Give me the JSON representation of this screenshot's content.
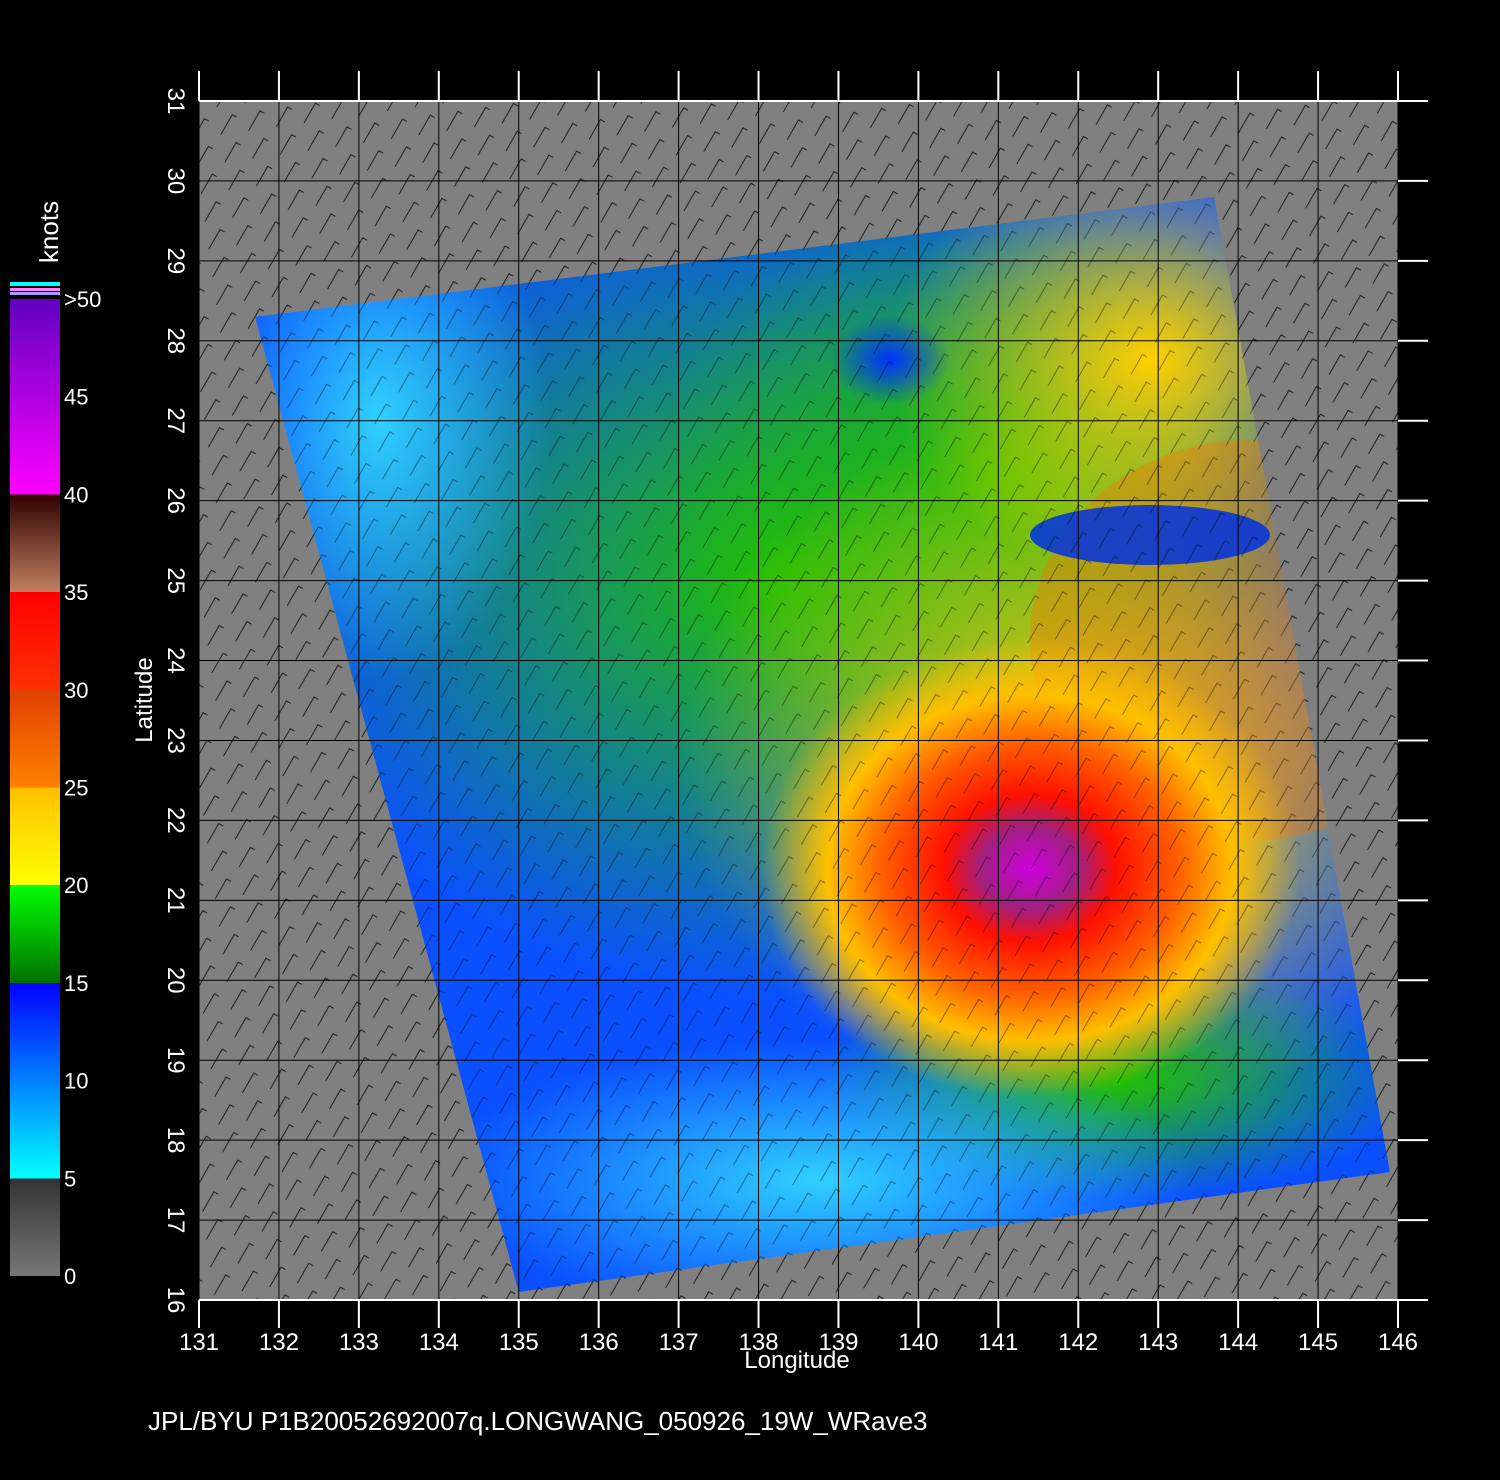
{
  "map": {
    "x_axis_label": "Longitude",
    "y_axis_label": "Latitude",
    "caption": "JPL/BYU  P1B20052692007q.LONGWANG_050926_19W_WRave3",
    "lon_ticks": [
      "131",
      "132",
      "133",
      "134",
      "135",
      "136",
      "137",
      "138",
      "139",
      "140",
      "141",
      "142",
      "143",
      "144",
      "145",
      "146"
    ],
    "lat_ticks": [
      "16",
      "17",
      "18",
      "19",
      "20",
      "21",
      "22",
      "23",
      "24",
      "25",
      "26",
      "27",
      "28",
      "29",
      "30",
      "31"
    ],
    "lon_range": [
      131,
      146
    ],
    "lat_range": [
      16,
      31
    ],
    "grid": true,
    "background_color": "#808080",
    "colorbar": {
      "units": "knots",
      "labels": [
        "0",
        "5",
        "10",
        "15",
        "20",
        "25",
        "30",
        "35",
        "40",
        "45",
        ">50"
      ],
      "stops": [
        {
          "value": 0,
          "color": "#777777"
        },
        {
          "value": 5,
          "color": "#333333"
        },
        {
          "value": 5,
          "color": "#00ffff"
        },
        {
          "value": 10,
          "color": "#0080ff"
        },
        {
          "value": 15,
          "color": "#0000ff"
        },
        {
          "value": 15,
          "color": "#007000"
        },
        {
          "value": 20,
          "color": "#00ff00"
        },
        {
          "value": 20,
          "color": "#ffff00"
        },
        {
          "value": 25,
          "color": "#ffc000"
        },
        {
          "value": 25,
          "color": "#ff8000"
        },
        {
          "value": 30,
          "color": "#e04000"
        },
        {
          "value": 30,
          "color": "#ff3000"
        },
        {
          "value": 35,
          "color": "#ff0000"
        },
        {
          "value": 35,
          "color": "#c08060"
        },
        {
          "value": 40,
          "color": "#300000"
        },
        {
          "value": 40,
          "color": "#ff00ff"
        },
        {
          "value": 50,
          "color": "#6000c0"
        }
      ]
    },
    "swath_corners_lonlat": [
      [
        131.7,
        28.3
      ],
      [
        143.7,
        29.8
      ],
      [
        145.9,
        17.6
      ],
      [
        135.0,
        16.1
      ]
    ],
    "storm_center_lonlat": [
      141.4,
      21.4
    ],
    "storm_name": "LONGWANG",
    "storm_id": "19W"
  }
}
